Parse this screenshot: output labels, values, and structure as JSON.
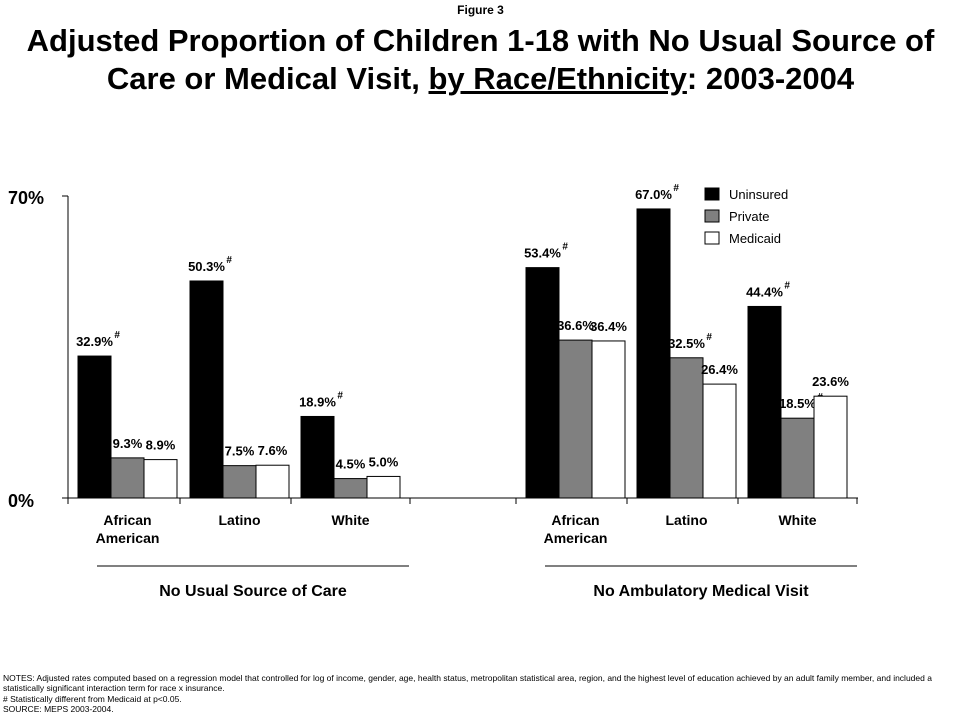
{
  "figure_label": "Figure 3",
  "title": {
    "part1": "Adjusted Proportion of Children 1-18 with No Usual Source of Care or Medical Visit, ",
    "underlined": "by Race/Ethnicity",
    "part2": ": 2003-2004"
  },
  "notes": {
    "line1": "NOTES: Adjusted rates computed based on a regression model that controlled for log of income, gender, age, health status, metropolitan statistical area, region, and the highest level of education achieved by an adult family member, and included a statistically significant interaction term for race x insurance.",
    "line2": "# Statistically different from Medicaid at p<0.05.",
    "line3": "SOURCE: MEPS 2003-2004."
  },
  "colors": {
    "Uninsured": "#000000",
    "Private": "#808080",
    "Medicaid": "#ffffff"
  },
  "chart_data": {
    "type": "bar",
    "ylim": [
      0,
      70
    ],
    "y_ticks": [
      "0%",
      "70%"
    ],
    "legend_position": "top-right",
    "series_names": [
      "Uninsured",
      "Private",
      "Medicaid"
    ],
    "groups": [
      {
        "label": "No Usual Source of Care",
        "categories": [
          {
            "name": [
              "African",
              "American"
            ],
            "values": [
              32.9,
              9.3,
              8.9
            ],
            "labels": [
              "32.9%",
              "9.3%",
              "8.9%"
            ],
            "significant": [
              true,
              false,
              false
            ]
          },
          {
            "name": [
              "Latino"
            ],
            "values": [
              50.3,
              7.5,
              7.6
            ],
            "labels": [
              "50.3%",
              "7.5%",
              "7.6%"
            ],
            "significant": [
              true,
              false,
              false
            ]
          },
          {
            "name": [
              "White"
            ],
            "values": [
              18.9,
              4.5,
              5.0
            ],
            "labels": [
              "18.9%",
              "4.5%",
              "5.0%"
            ],
            "significant": [
              true,
              false,
              false
            ]
          }
        ]
      },
      {
        "label": "No Ambulatory Medical Visit",
        "categories": [
          {
            "name": [
              "African",
              "American"
            ],
            "values": [
              53.4,
              36.6,
              36.4
            ],
            "labels": [
              "53.4%",
              "36.6%",
              "36.4%"
            ],
            "significant": [
              true,
              false,
              false
            ]
          },
          {
            "name": [
              "Latino"
            ],
            "values": [
              67.0,
              32.5,
              26.4
            ],
            "labels": [
              "67.0%",
              "32.5%",
              "26.4%"
            ],
            "significant": [
              true,
              true,
              false
            ]
          },
          {
            "name": [
              "White"
            ],
            "values": [
              44.4,
              18.5,
              23.6
            ],
            "labels": [
              "44.4%",
              "18.5%",
              "23.6%"
            ],
            "significant": [
              true,
              true,
              false
            ]
          }
        ]
      }
    ],
    "significance_marker": "#"
  }
}
